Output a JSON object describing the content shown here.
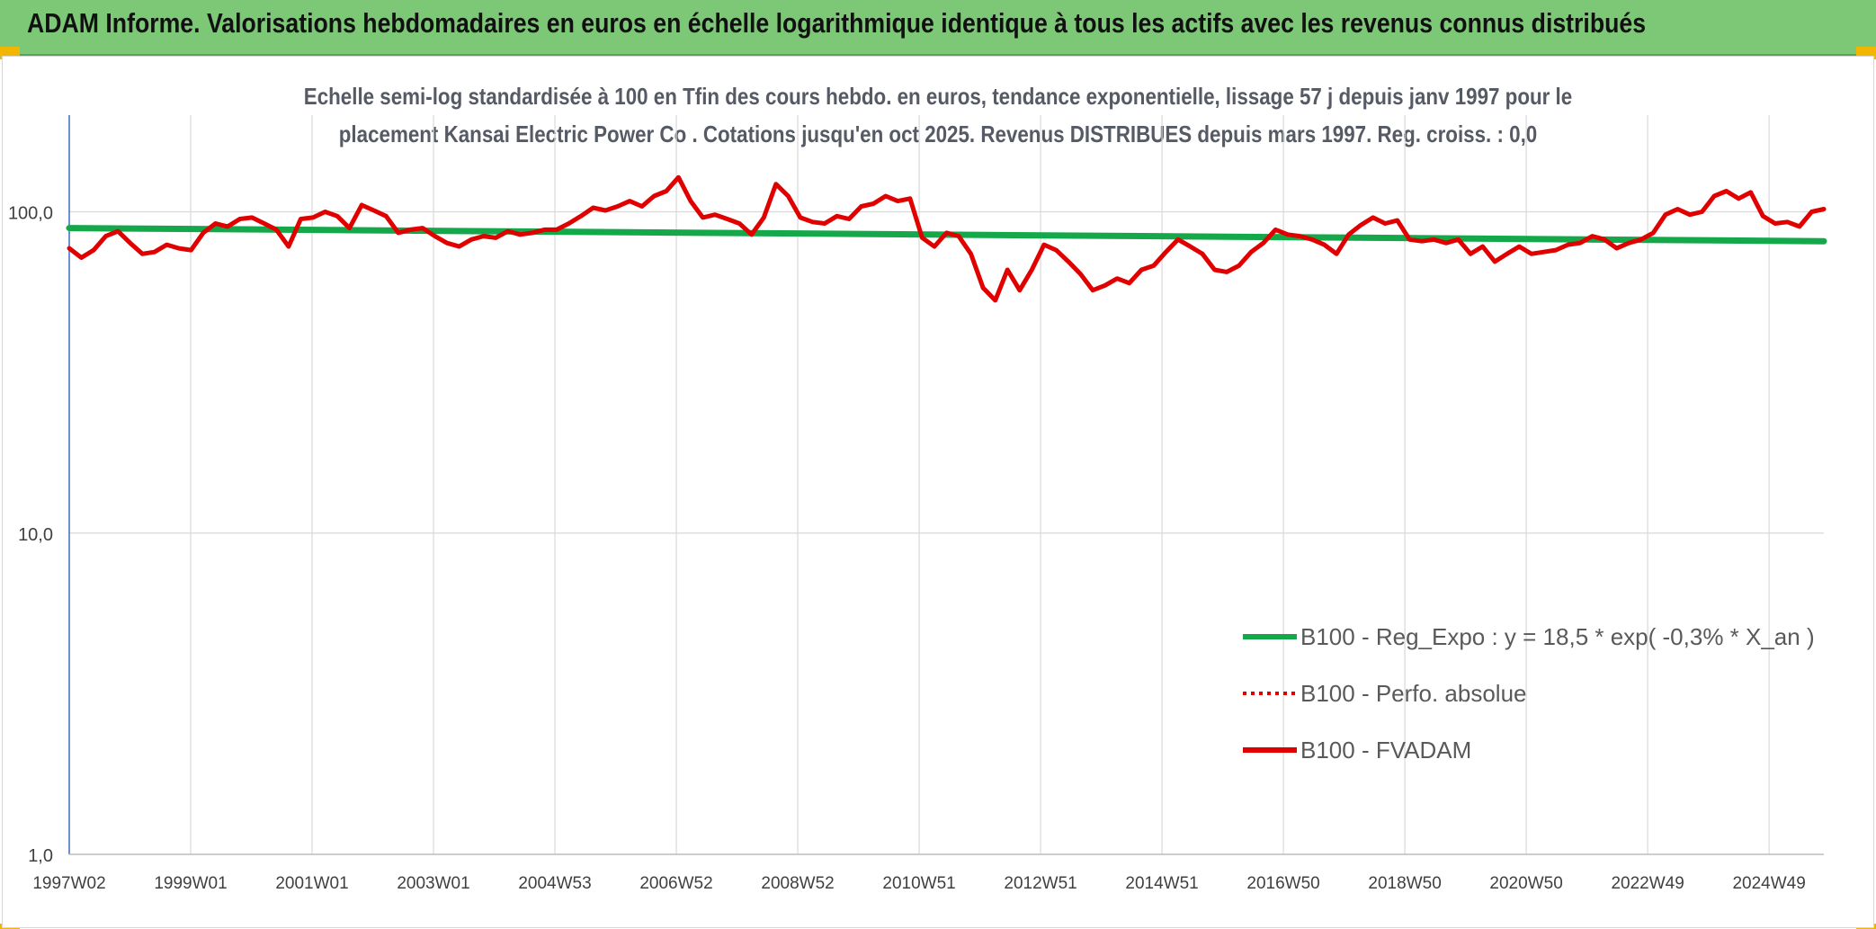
{
  "banner": {
    "title": "ADAM Informe. Valorisations hebdomadaires en euros en échelle logarithmique identique à tous les actifs avec les revenus connus distribués",
    "accent_color": "#7dc876",
    "corner_color": "#f2b600"
  },
  "chart_data": {
    "type": "line",
    "title": "Echelle semi-log standardisée à 100 en Tfin des cours hebdo. en euros, tendance exponentielle, lissage 57 j depuis janv 1997 pour le",
    "subtitle": "placement Kansai Electric Power Co . Cotations jusqu'en oct 2025. Revenus DISTRIBUES depuis mars 1997. Reg. croiss. : 0,0",
    "y_scale": "log",
    "ylim": [
      1,
      200
    ],
    "y_ticks": [
      "1,0",
      "10,0",
      "100,0"
    ],
    "x_ticks": [
      "1997W02",
      "1999W01",
      "2001W01",
      "2003W01",
      "2004W53",
      "2006W52",
      "2008W52",
      "2010W51",
      "2012W51",
      "2014W51",
      "2016W50",
      "2018W50",
      "2020W50",
      "2022W49",
      "2024W49"
    ],
    "x_range": [
      "1997W02",
      "2025W43"
    ],
    "grid": "vertical lines at x ticks, horizontal lines at y ticks",
    "legend_position": "lower-right",
    "series": [
      {
        "name": "B100 - Reg_Expo : y = 18,5 * exp( -0,3% *  X_an )",
        "color": "#14a84a",
        "style": "solid",
        "x": [
          1997.0,
          2025.8
        ],
        "y": [
          89,
          81
        ]
      },
      {
        "name": "B100 - Perfo. absolue",
        "color": "#e00000",
        "style": "dotted",
        "x": [],
        "y": []
      },
      {
        "name": "B100 - FVADAM",
        "color": "#e00000",
        "style": "solid",
        "x": [
          1997.0,
          1997.2,
          1997.4,
          1997.6,
          1997.8,
          1998.0,
          1998.2,
          1998.4,
          1998.6,
          1998.8,
          1999.0,
          1999.2,
          1999.4,
          1999.6,
          1999.8,
          2000.0,
          2000.2,
          2000.4,
          2000.6,
          2000.8,
          2001.0,
          2001.2,
          2001.4,
          2001.6,
          2001.8,
          2002.0,
          2002.2,
          2002.4,
          2002.6,
          2002.8,
          2003.0,
          2003.2,
          2003.4,
          2003.6,
          2003.8,
          2004.0,
          2004.2,
          2004.4,
          2004.6,
          2004.8,
          2005.0,
          2005.2,
          2005.4,
          2005.6,
          2005.8,
          2006.0,
          2006.2,
          2006.4,
          2006.6,
          2006.8,
          2007.0,
          2007.2,
          2007.4,
          2007.6,
          2007.8,
          2008.0,
          2008.2,
          2008.4,
          2008.6,
          2008.8,
          2009.0,
          2009.2,
          2009.4,
          2009.6,
          2009.8,
          2010.0,
          2010.2,
          2010.4,
          2010.6,
          2010.8,
          2011.0,
          2011.2,
          2011.4,
          2011.6,
          2011.8,
          2012.0,
          2012.2,
          2012.4,
          2012.6,
          2012.8,
          2013.0,
          2013.2,
          2013.4,
          2013.6,
          2013.8,
          2014.0,
          2014.2,
          2014.4,
          2014.6,
          2014.8,
          2015.0,
          2015.2,
          2015.4,
          2015.6,
          2015.8,
          2016.0,
          2016.2,
          2016.4,
          2016.6,
          2016.8,
          2017.0,
          2017.2,
          2017.4,
          2017.6,
          2017.8,
          2018.0,
          2018.2,
          2018.4,
          2018.6,
          2018.8,
          2019.0,
          2019.2,
          2019.4,
          2019.6,
          2019.8,
          2020.0,
          2020.2,
          2020.4,
          2020.6,
          2020.8,
          2021.0,
          2021.2,
          2021.4,
          2021.6,
          2021.8,
          2022.0,
          2022.2,
          2022.4,
          2022.6,
          2022.8,
          2023.0,
          2023.2,
          2023.4,
          2023.6,
          2023.8,
          2024.0,
          2024.2,
          2024.4,
          2024.6,
          2024.8,
          2025.0,
          2025.2,
          2025.4,
          2025.6,
          2025.8
        ],
        "y": [
          77,
          72,
          76,
          84,
          87,
          80,
          74,
          75,
          79,
          77,
          76,
          86,
          92,
          90,
          95,
          96,
          92,
          88,
          78,
          95,
          96,
          100,
          97,
          89,
          105,
          101,
          97,
          86,
          88,
          89,
          84,
          80,
          78,
          82,
          84,
          83,
          87,
          85,
          86,
          88,
          88,
          92,
          97,
          103,
          101,
          104,
          108,
          104,
          112,
          116,
          128,
          108,
          96,
          98,
          95,
          92,
          85,
          96,
          122,
          112,
          96,
          93,
          92,
          97,
          95,
          104,
          106,
          112,
          108,
          110,
          83,
          78,
          86,
          84,
          74,
          58,
          53,
          66,
          57,
          66,
          79,
          76,
          70,
          64,
          57,
          59,
          62,
          60,
          66,
          68,
          75,
          82,
          78,
          74,
          66,
          65,
          68,
          75,
          80,
          88,
          85,
          84,
          82,
          79,
          74,
          85,
          91,
          96,
          92,
          94,
          82,
          81,
          82,
          80,
          82,
          74,
          78,
          70,
          74,
          78,
          74,
          75,
          76,
          79,
          80,
          84,
          82,
          77,
          80,
          82,
          86,
          98,
          102,
          98,
          100,
          112,
          116,
          110,
          115,
          97,
          92,
          93,
          90,
          100,
          102
        ]
      }
    ]
  }
}
